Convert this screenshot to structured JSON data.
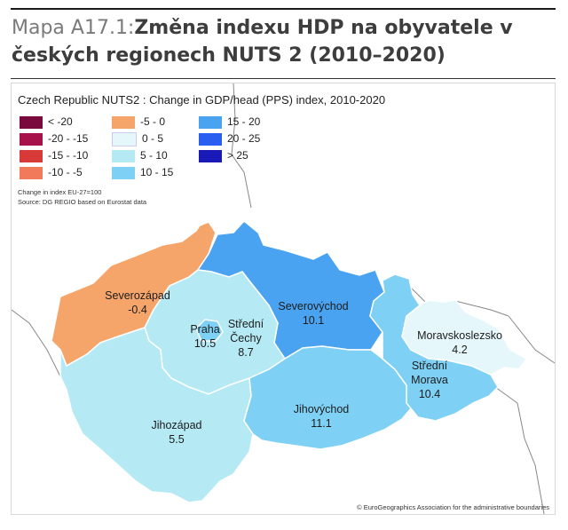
{
  "heading": {
    "prefix": "Mapa A17.1:",
    "title": "Změna indexu HDP na obyvatele v českých regionech NUTS 2 (2010–2020)"
  },
  "map": {
    "title": "Czech Republic NUTS2 : Change in GDP/head (PPS) index, 2010-2020",
    "note": "Change in index EU-27=100",
    "source": "Source: DG REGIO based on Eurostat data",
    "copyright": "© EuroGeographics Association for the administrative boundaries"
  },
  "legend": [
    {
      "label": "< -20",
      "color": "#7a0a3e"
    },
    {
      "label": "-20 - -15",
      "color": "#a8124a"
    },
    {
      "label": "-15 - -10",
      "color": "#d83a3a"
    },
    {
      "label": "-10 - -5",
      "color": "#f07a5a"
    },
    {
      "label": "-5 - 0",
      "color": "#f5a46a"
    },
    {
      "label": "0 - 5",
      "color": "#e6f7fb"
    },
    {
      "label": "5 - 10",
      "color": "#b5eaf5"
    },
    {
      "label": "10 - 15",
      "color": "#7ed0f5"
    },
    {
      "label": "15 - 20",
      "color": "#4aa3f0"
    },
    {
      "label": "20 - 25",
      "color": "#2a5ef0"
    },
    {
      "label": "> 25",
      "color": "#1a1ab8"
    }
  ],
  "regions": [
    {
      "name": "Severozápad",
      "value": "-0.4",
      "color": "#f5a46a"
    },
    {
      "name": "Praha",
      "value": "10.5",
      "color": "#7ed0f5"
    },
    {
      "name": "Střední Čechy",
      "value": "8.7",
      "color": "#b5eaf5"
    },
    {
      "name": "Severovýchod",
      "value": "10.1",
      "color": "#7ed0f5"
    },
    {
      "name": "Jihozápad",
      "value": "5.5",
      "color": "#b5eaf5"
    },
    {
      "name": "Jihovýchod",
      "value": "11.1",
      "color": "#7ed0f5"
    },
    {
      "name": "Střední Morava",
      "value": "10.4",
      "color": "#7ed0f5"
    },
    {
      "name": "Moravskoslezsko",
      "value": "4.2",
      "color": "#e6f7fb"
    }
  ]
}
